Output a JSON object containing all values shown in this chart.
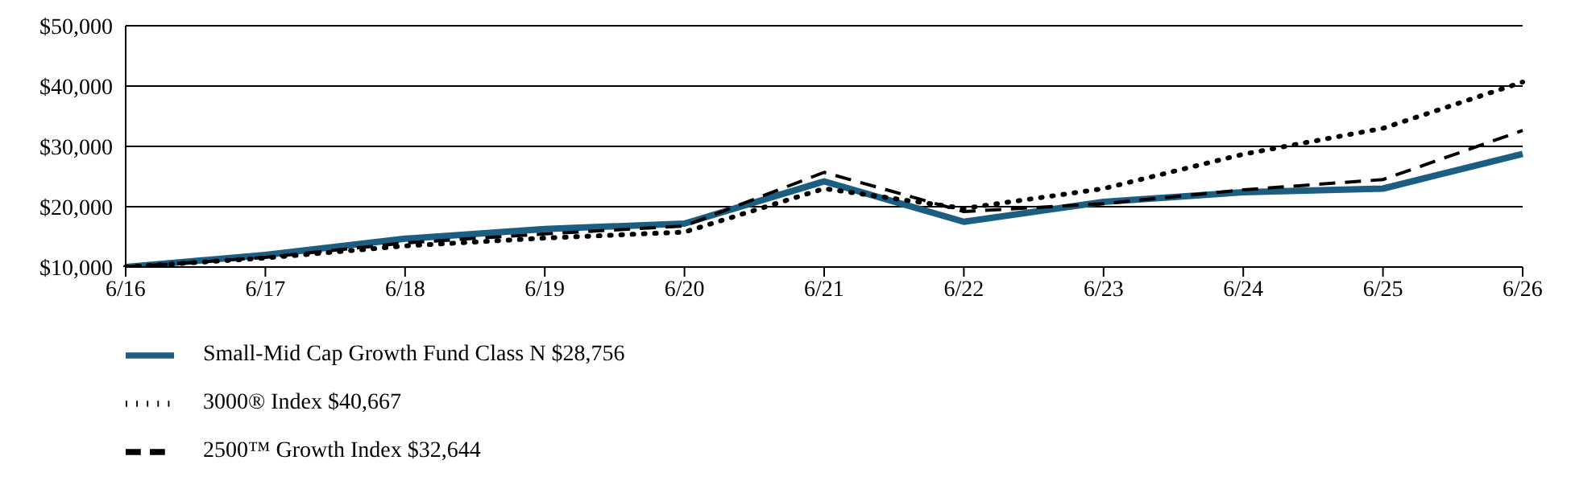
{
  "chart_data": {
    "type": "line",
    "categories": [
      "6/16",
      "6/17",
      "6/18",
      "6/19",
      "6/20",
      "6/21",
      "6/22",
      "6/23",
      "6/24",
      "6/25",
      "6/26"
    ],
    "series": [
      {
        "name": "Small-Mid Cap Growth Fund Class N $28,756",
        "color": "#1b5e82",
        "line_style": "solid",
        "values": [
          10000,
          12000,
          14700,
          16300,
          17200,
          24200,
          17500,
          20800,
          22400,
          23000,
          28756
        ]
      },
      {
        "name": "3000® Index $40,667",
        "color": "#000000",
        "line_style": "dotted",
        "values": [
          10000,
          11500,
          13500,
          14800,
          15800,
          23000,
          19700,
          23000,
          28700,
          33000,
          40667
        ]
      },
      {
        "name": "2500™ Growth Index $32,644",
        "color": "#000000",
        "line_style": "dashed",
        "values": [
          10000,
          11600,
          14000,
          15500,
          16800,
          25700,
          19200,
          20500,
          22800,
          24500,
          32644
        ]
      }
    ],
    "ylim": [
      10000,
      50000
    ],
    "yticks": [
      {
        "value": 10000,
        "label": "$10,000"
      },
      {
        "value": 20000,
        "label": "$20,000"
      },
      {
        "value": 30000,
        "label": "$30,000"
      },
      {
        "value": 40000,
        "label": "$40,000"
      },
      {
        "value": 50000,
        "label": "$50,000"
      }
    ],
    "grid": "y",
    "legend": "bottom",
    "marker": "none"
  }
}
